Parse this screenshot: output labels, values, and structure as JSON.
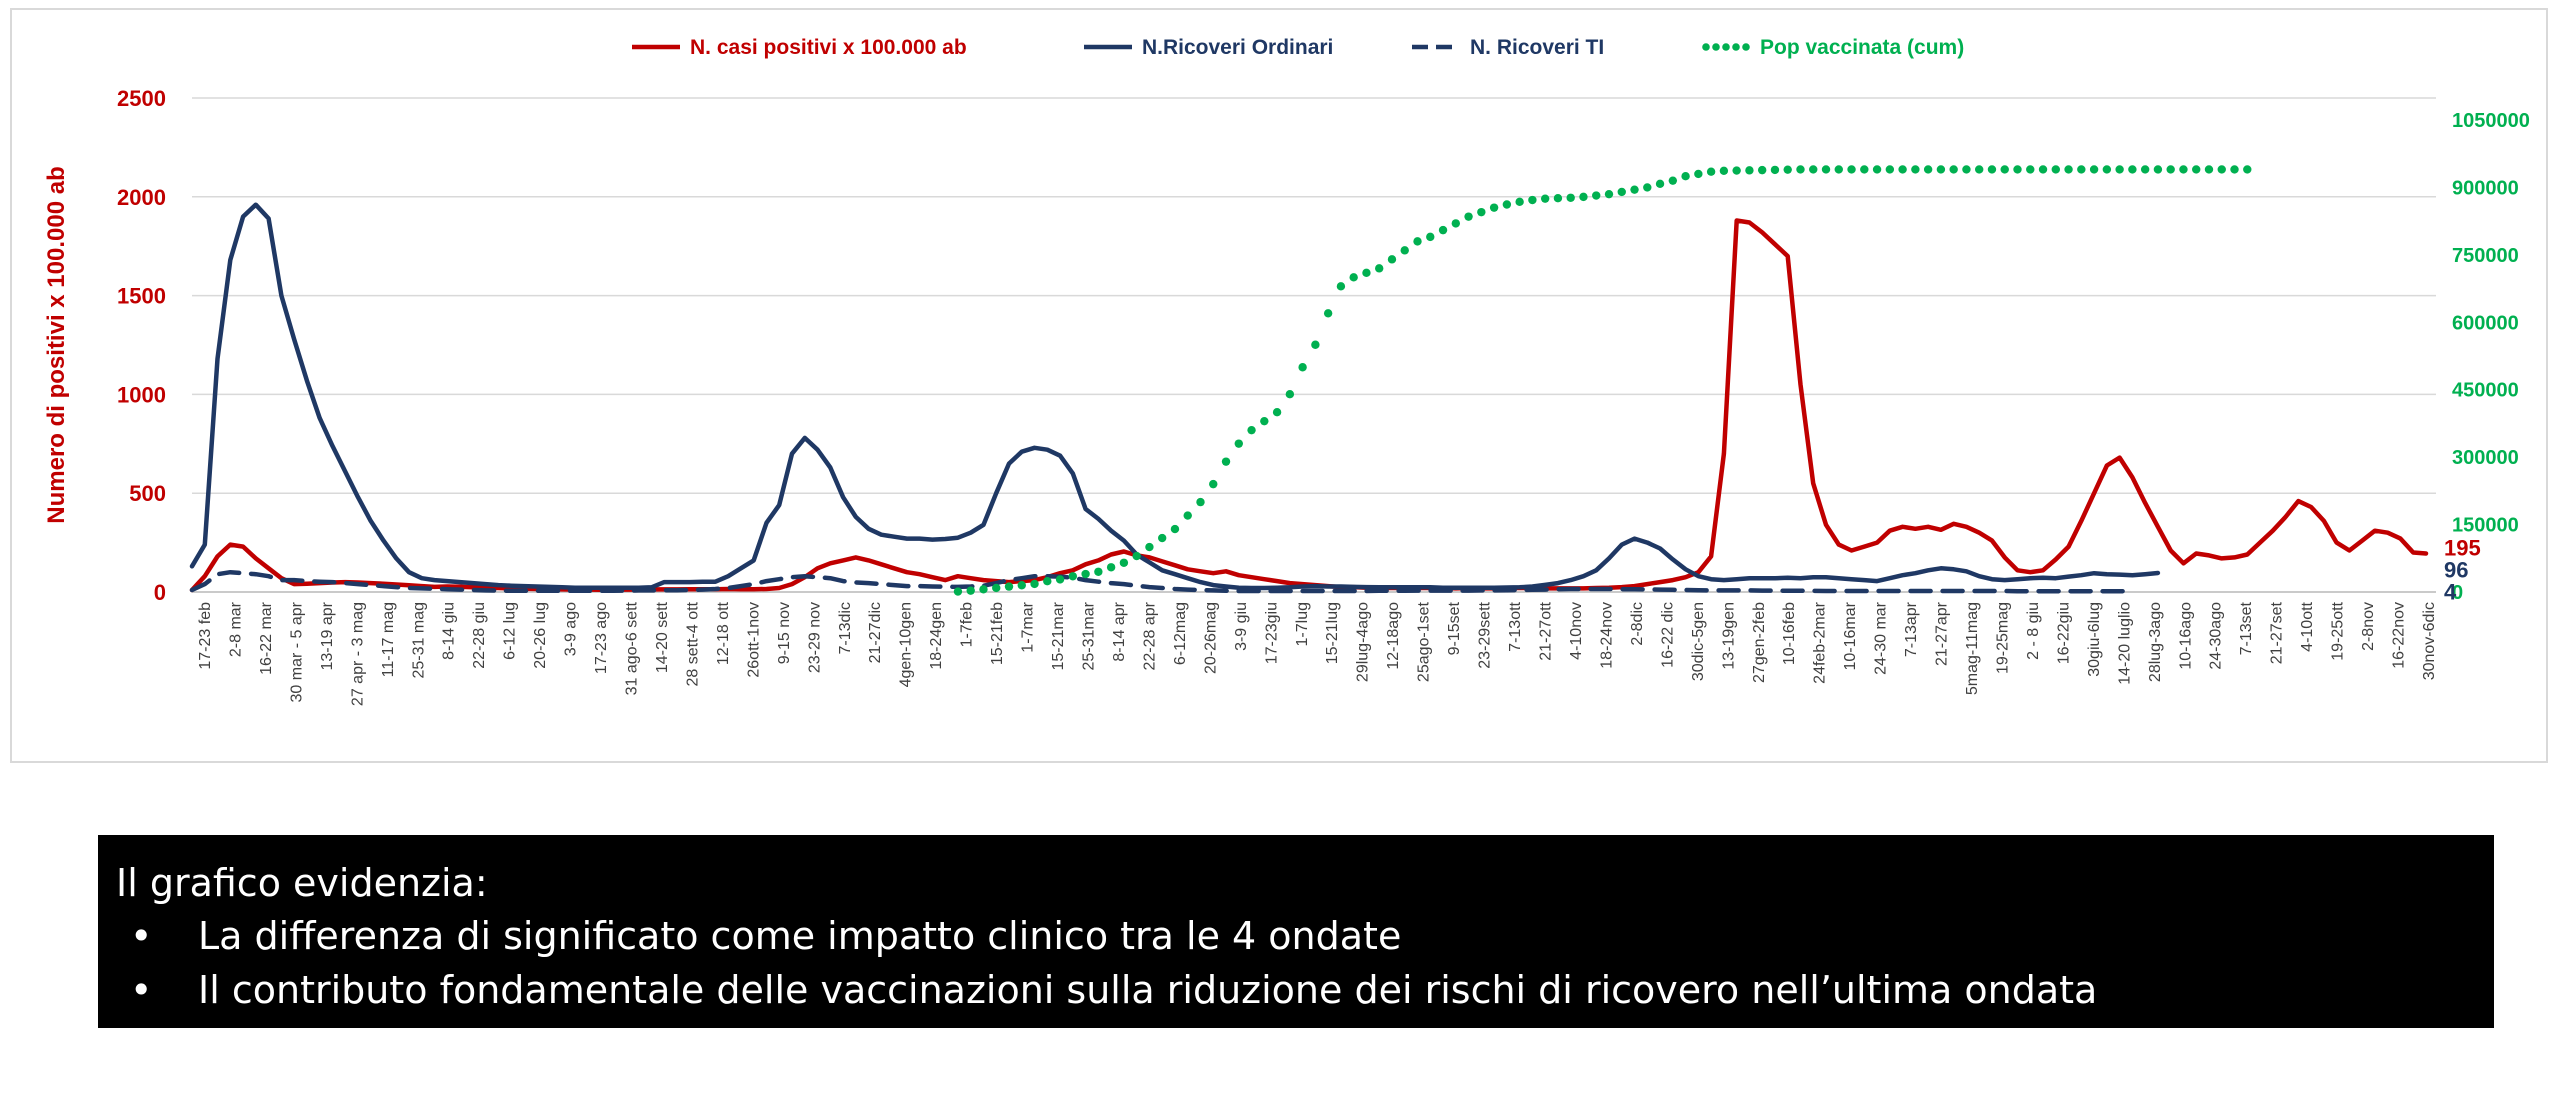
{
  "chart_data": {
    "type": "line",
    "ylabel": "Numero di positivi x 100.000 ab",
    "ylim": [
      0,
      2500
    ],
    "yticks": [
      "0",
      "500",
      "1000",
      "1500",
      "2000",
      "2500"
    ],
    "y2lim": [
      0,
      1050000
    ],
    "y2ticks": [
      "0",
      "150000",
      "300000",
      "450000",
      "600000",
      "750000",
      "900000",
      "1050000"
    ],
    "grid": true,
    "legend_position": "top",
    "x_tick_labels": [
      "17-23 feb",
      "2-8 mar",
      "16-22 mar",
      "30 mar - 5 apr",
      "13-19 apr",
      "27 apr - 3 mag",
      "11-17 mag",
      "25-31 mag",
      "8-14 giu",
      "22-28 giu",
      "6-12 lug",
      "20-26 lug",
      "3-9 ago",
      "17-23 ago",
      "31 ago-6 sett",
      "14-20 sett",
      "28 sett-4 ott",
      "12-18 ott",
      "26ott-1nov",
      "9-15 nov",
      "23-29 nov",
      "7-13dic",
      "21-27dic",
      "4gen-10gen",
      "18-24gen",
      "1-7feb",
      "15-21feb",
      "1-7mar",
      "15-21mar",
      "25-31mar",
      "8-14 apr",
      "22-28 apr",
      "6-12mag",
      "20-26mag",
      "3-9 giu",
      "17-23giu",
      "1-7lug",
      "15-21lug",
      "29lug-4ago",
      "12-18ago",
      "25ago-1set",
      "9-15set",
      "23-29sett",
      "7-13ott",
      "21-27ott",
      "4-10nov",
      "18-24nov",
      "2-8dic",
      "16-22 dic",
      "30dic-5gen",
      "13-19gen",
      "27gen-2feb",
      "10-16feb",
      "24feb-2mar",
      "10-16mar",
      "24-30 mar",
      "7-13apr",
      "21-27apr",
      "5mag-11mag",
      "19-25mag",
      "2 - 8 giu",
      "16-22giu",
      "30giu-6lug",
      "14-20 luglio",
      "28lug-3ago",
      "10-16ago",
      "24-30ago",
      "7-13set",
      "21-27set",
      "4-10ott",
      "19-25ott",
      "2-8nov",
      "16-22nov",
      "30nov-6dic"
    ],
    "series": [
      {
        "name": "N. casi positivi x 100.000 ab",
        "axis": "left",
        "color": "#c00000",
        "style": "solid",
        "end_label": "195",
        "values": [
          10,
          80,
          180,
          240,
          230,
          170,
          120,
          70,
          40,
          42,
          45,
          48,
          50,
          48,
          45,
          42,
          38,
          34,
          30,
          26,
          28,
          27,
          24,
          22,
          20,
          18,
          16,
          15,
          14,
          13,
          12,
          12,
          11,
          11,
          12,
          12,
          13,
          13,
          13,
          14,
          14,
          14,
          15,
          14,
          14,
          15,
          20,
          40,
          75,
          120,
          145,
          160,
          175,
          160,
          140,
          120,
          100,
          90,
          75,
          60,
          80,
          70,
          60,
          55,
          50,
          55,
          60,
          75,
          95,
          110,
          140,
          160,
          190,
          205,
          185,
          175,
          155,
          135,
          115,
          105,
          95,
          105,
          85,
          75,
          65,
          55,
          45,
          40,
          35,
          30,
          25,
          25,
          22,
          20,
          20,
          20,
          20,
          20,
          20,
          18,
          20,
          18,
          18,
          20,
          20,
          20,
          18,
          18,
          18,
          18,
          20,
          22,
          25,
          30,
          40,
          50,
          60,
          75,
          100,
          180,
          700,
          1880,
          1870,
          1820,
          1760,
          1700,
          1050,
          550,
          340,
          240,
          210,
          230,
          250,
          310,
          330,
          320,
          330,
          315,
          345,
          330,
          300,
          260,
          175,
          110,
          100,
          110,
          165,
          230,
          360,
          500,
          640,
          680,
          580,
          450,
          330,
          210,
          145,
          195,
          185,
          170,
          175,
          190,
          250,
          310,
          380,
          460,
          430,
          360,
          250,
          210,
          260,
          310,
          300,
          270,
          200,
          195
        ]
      },
      {
        "name": "N.Ricoveri Ordinari",
        "axis": "left",
        "color": "#1f3864",
        "style": "solid",
        "end_label": "96",
        "values": [
          130,
          240,
          1180,
          1680,
          1900,
          1960,
          1890,
          1500,
          1280,
          1070,
          880,
          740,
          610,
          480,
          360,
          260,
          170,
          100,
          70,
          60,
          55,
          50,
          45,
          40,
          35,
          32,
          30,
          28,
          26,
          24,
          22,
          22,
          22,
          22,
          22,
          22,
          24,
          50,
          50,
          50,
          52,
          52,
          80,
          120,
          160,
          350,
          440,
          700,
          780,
          720,
          630,
          480,
          380,
          320,
          290,
          280,
          270,
          270,
          265,
          268,
          275,
          300,
          340,
          500,
          650,
          710,
          730,
          720,
          690,
          600,
          420,
          370,
          310,
          260,
          190,
          150,
          110,
          90,
          70,
          50,
          35,
          28,
          22,
          20,
          20,
          22,
          24,
          28,
          30,
          28,
          28,
          26,
          25,
          24,
          24,
          24,
          24,
          24,
          22,
          22,
          22,
          22,
          22,
          23,
          24,
          28,
          36,
          45,
          60,
          80,
          110,
          170,
          240,
          270,
          250,
          220,
          165,
          115,
          80,
          65,
          60,
          65,
          70,
          70,
          70,
          72,
          70,
          75,
          75,
          70,
          65,
          60,
          55,
          70,
          85,
          95,
          110,
          120,
          115,
          105,
          80,
          65,
          60,
          65,
          70,
          72,
          70,
          78,
          85,
          95,
          90,
          88,
          85,
          90,
          96
        ]
      },
      {
        "name": "N. Ricoveri TI",
        "axis": "left",
        "color": "#1f3864",
        "style": "dashed",
        "end_label": "4",
        "values": [
          10,
          40,
          90,
          100,
          95,
          90,
          80,
          60,
          60,
          55,
          52,
          50,
          45,
          40,
          35,
          30,
          25,
          20,
          18,
          16,
          14,
          12,
          10,
          8,
          7,
          6,
          6,
          6,
          6,
          6,
          6,
          6,
          6,
          6,
          7,
          8,
          8,
          9,
          9,
          10,
          12,
          15,
          20,
          30,
          40,
          55,
          65,
          75,
          80,
          75,
          70,
          55,
          48,
          45,
          40,
          35,
          30,
          30,
          28,
          27,
          26,
          28,
          32,
          45,
          60,
          70,
          80,
          80,
          78,
          72,
          60,
          52,
          45,
          40,
          32,
          25,
          20,
          15,
          12,
          10,
          8,
          6,
          5,
          5,
          5,
          5,
          5,
          5,
          5,
          5,
          5,
          5,
          5,
          6,
          6,
          6,
          7,
          7,
          7,
          7,
          7,
          8,
          8,
          9,
          10,
          11,
          12,
          14,
          15,
          15,
          15,
          15,
          14,
          14,
          13,
          12,
          11,
          10,
          9,
          8,
          8,
          8,
          8,
          7,
          7,
          6,
          6,
          6,
          5,
          5,
          5,
          5,
          5,
          5,
          5,
          5,
          5,
          5,
          5,
          5,
          5,
          5,
          5,
          4,
          4,
          4,
          4,
          4,
          4,
          4,
          4,
          4,
          4
        ]
      },
      {
        "name": "Pop vaccinata (cum)",
        "axis": "right",
        "color": "#00b050",
        "style": "dotted",
        "start_index": 60,
        "values": [
          1000,
          3000,
          6000,
          9000,
          12000,
          15000,
          18000,
          24000,
          28000,
          35000,
          40000,
          45000,
          55000,
          65000,
          80000,
          100000,
          120000,
          140000,
          170000,
          200000,
          240000,
          290000,
          330000,
          360000,
          380000,
          400000,
          440000,
          500000,
          550000,
          620000,
          680000,
          700000,
          710000,
          720000,
          740000,
          760000,
          780000,
          790000,
          805000,
          820000,
          835000,
          845000,
          855000,
          862000,
          868000,
          872000,
          875000,
          876000,
          877000,
          879000,
          882000,
          885000,
          890000,
          895000,
          900000,
          908000,
          915000,
          925000,
          930000,
          935000,
          937000,
          937500,
          938000,
          938500,
          939000,
          939500,
          940000,
          940000,
          940000,
          940000,
          940000,
          940000,
          940000,
          940000,
          940000,
          940000,
          940000,
          940000,
          940000,
          940000,
          940000,
          940000,
          940000,
          940000,
          940000,
          940000,
          940000,
          940000,
          940000,
          940000,
          940000,
          940000,
          940000,
          940000,
          940000,
          940000,
          940000,
          940000,
          940000,
          940000,
          940000,
          940000
        ]
      }
    ]
  },
  "info_box": {
    "heading": "Il grafico evidenzia:",
    "bullet_glyph": "•",
    "bullets": [
      "La differenza di significato come impatto clinico tra le 4 ondate",
      "Il contributo fondamentale delle vaccinazioni sulla riduzione dei rischi di ricovero nell’ultima ondata"
    ]
  }
}
